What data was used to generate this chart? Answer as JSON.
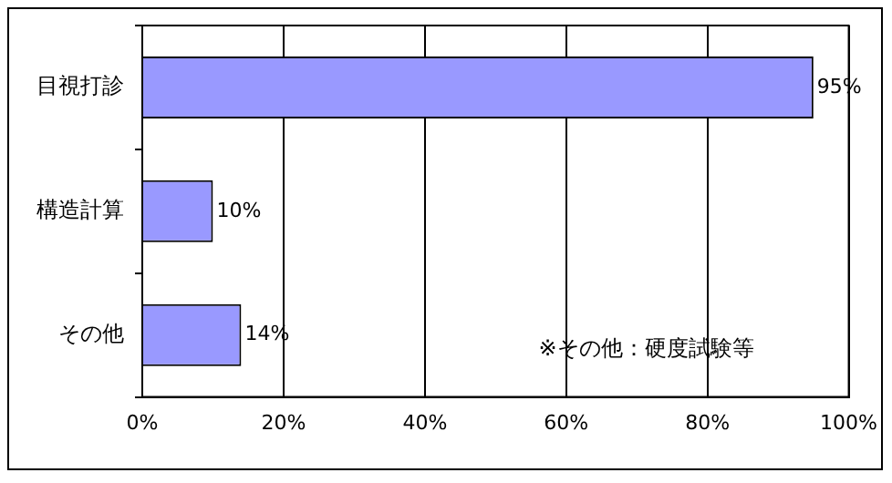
{
  "chart_data": {
    "type": "bar",
    "orientation": "horizontal",
    "categories": [
      "目視打診",
      "構造計算",
      "その他"
    ],
    "values": [
      95,
      10,
      14
    ],
    "color": "#9999ff",
    "value_labels": [
      "95%",
      "10%",
      "14%"
    ],
    "xlim": [
      0,
      100
    ],
    "xticks": [
      {
        "value": 0,
        "label": "0%"
      },
      {
        "value": 20,
        "label": "20%"
      },
      {
        "value": 40,
        "label": "40%"
      },
      {
        "value": 60,
        "label": "60%"
      },
      {
        "value": 80,
        "label": "80%"
      },
      {
        "value": 100,
        "label": "100%"
      }
    ],
    "grid": "x",
    "legend": false,
    "annotations": [
      "※その他：硬度試験等"
    ]
  }
}
